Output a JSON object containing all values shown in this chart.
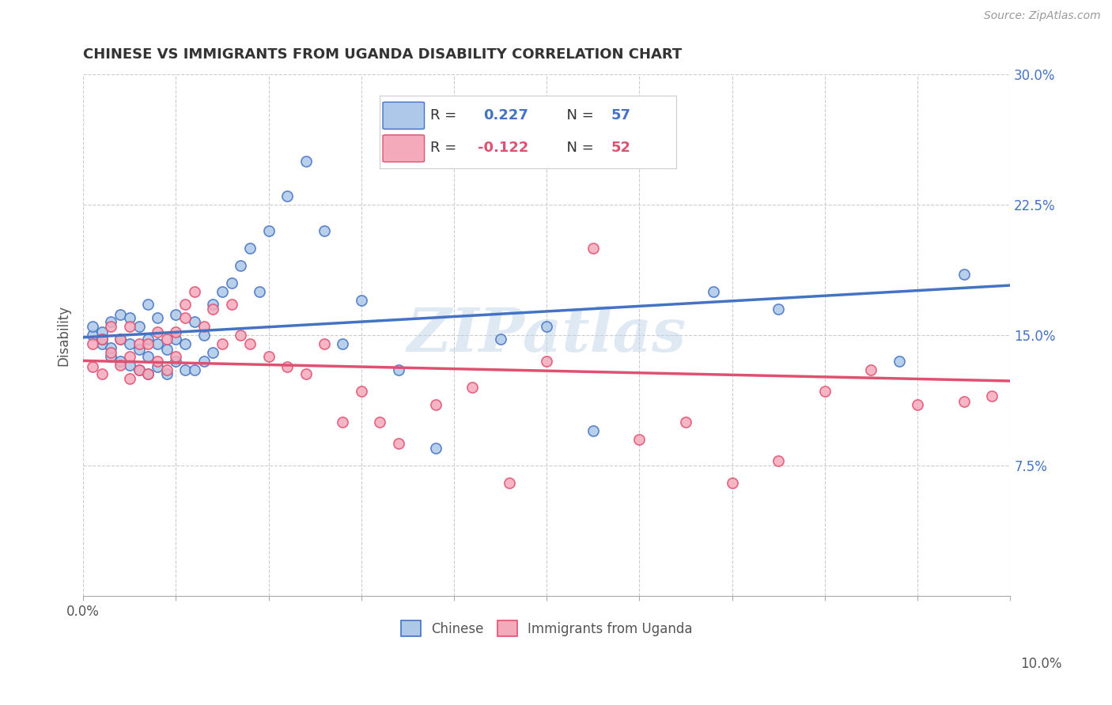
{
  "title": "CHINESE VS IMMIGRANTS FROM UGANDA DISABILITY CORRELATION CHART",
  "source": "Source: ZipAtlas.com",
  "ylabel": "Disability",
  "watermark": "ZIPatlas",
  "r1": 0.227,
  "n1": 57,
  "r2": -0.122,
  "n2": 52,
  "xmin": 0.0,
  "xmax": 0.1,
  "ymin": 0.0,
  "ymax": 0.3,
  "yticks": [
    0.0,
    0.075,
    0.15,
    0.225,
    0.3
  ],
  "ytick_labels": [
    "",
    "7.5%",
    "15.0%",
    "22.5%",
    "30.0%"
  ],
  "color_chinese": "#adc8e8",
  "color_uganda": "#f5aabb",
  "color_line_chinese": "#4472c4",
  "color_line_uganda": "#e05070",
  "background_color": "#ffffff",
  "scatter_chinese_x": [
    0.001,
    0.001,
    0.002,
    0.002,
    0.002,
    0.003,
    0.003,
    0.003,
    0.004,
    0.004,
    0.004,
    0.005,
    0.005,
    0.005,
    0.006,
    0.006,
    0.006,
    0.007,
    0.007,
    0.007,
    0.007,
    0.008,
    0.008,
    0.008,
    0.009,
    0.009,
    0.01,
    0.01,
    0.01,
    0.011,
    0.011,
    0.012,
    0.012,
    0.013,
    0.013,
    0.014,
    0.014,
    0.015,
    0.016,
    0.017,
    0.018,
    0.019,
    0.02,
    0.022,
    0.024,
    0.026,
    0.028,
    0.03,
    0.034,
    0.038,
    0.045,
    0.05,
    0.055,
    0.068,
    0.075,
    0.088,
    0.095
  ],
  "scatter_chinese_y": [
    0.15,
    0.155,
    0.145,
    0.152,
    0.148,
    0.138,
    0.143,
    0.158,
    0.135,
    0.148,
    0.162,
    0.133,
    0.145,
    0.16,
    0.13,
    0.142,
    0.155,
    0.128,
    0.138,
    0.148,
    0.168,
    0.132,
    0.145,
    0.16,
    0.128,
    0.142,
    0.135,
    0.148,
    0.162,
    0.13,
    0.145,
    0.13,
    0.158,
    0.135,
    0.15,
    0.14,
    0.168,
    0.175,
    0.18,
    0.19,
    0.2,
    0.175,
    0.21,
    0.23,
    0.25,
    0.21,
    0.145,
    0.17,
    0.13,
    0.085,
    0.148,
    0.155,
    0.095,
    0.175,
    0.165,
    0.135,
    0.185
  ],
  "scatter_uganda_x": [
    0.001,
    0.001,
    0.002,
    0.002,
    0.003,
    0.003,
    0.004,
    0.004,
    0.005,
    0.005,
    0.005,
    0.006,
    0.006,
    0.007,
    0.007,
    0.008,
    0.008,
    0.009,
    0.009,
    0.01,
    0.01,
    0.011,
    0.011,
    0.012,
    0.013,
    0.014,
    0.015,
    0.016,
    0.017,
    0.018,
    0.02,
    0.022,
    0.024,
    0.026,
    0.028,
    0.03,
    0.032,
    0.034,
    0.038,
    0.042,
    0.046,
    0.05,
    0.055,
    0.06,
    0.065,
    0.07,
    0.075,
    0.08,
    0.085,
    0.09,
    0.095,
    0.098
  ],
  "scatter_uganda_y": [
    0.132,
    0.145,
    0.128,
    0.148,
    0.14,
    0.155,
    0.133,
    0.148,
    0.125,
    0.138,
    0.155,
    0.13,
    0.145,
    0.128,
    0.145,
    0.135,
    0.152,
    0.13,
    0.148,
    0.138,
    0.152,
    0.16,
    0.168,
    0.175,
    0.155,
    0.165,
    0.145,
    0.168,
    0.15,
    0.145,
    0.138,
    0.132,
    0.128,
    0.145,
    0.1,
    0.118,
    0.1,
    0.088,
    0.11,
    0.12,
    0.065,
    0.135,
    0.2,
    0.09,
    0.1,
    0.065,
    0.078,
    0.118,
    0.13,
    0.11,
    0.112,
    0.115
  ]
}
